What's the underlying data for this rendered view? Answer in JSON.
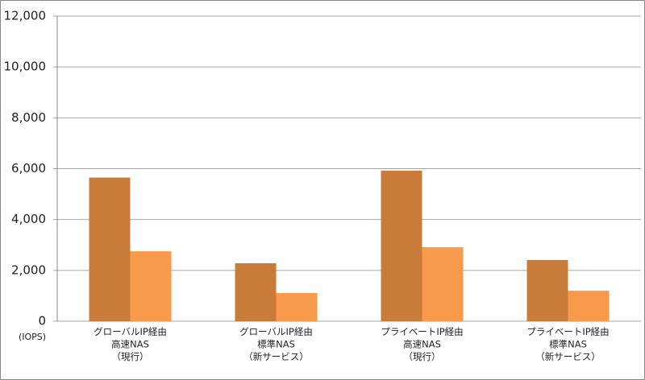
{
  "chart_data": {
    "type": "bar",
    "categories": [
      [
        "グローバルIP経由",
        "高速NAS",
        "（現行）"
      ],
      [
        "グローバルIP経由",
        "標準NAS",
        "（新サービス）"
      ],
      [
        "プライベートIP経由",
        "高速NAS",
        "（現行）"
      ],
      [
        "プライベートIP経由",
        "標準NAS",
        "（新サービス）"
      ]
    ],
    "series": [
      {
        "color": "#c97b3a",
        "values": [
          5650,
          2280,
          5920,
          2410
        ]
      },
      {
        "color": "#f79a4c",
        "values": [
          2750,
          1110,
          2910,
          1200
        ]
      }
    ],
    "y_unit_label": "(IOPS)",
    "ylim": [
      0,
      12000
    ],
    "yticks": [
      0,
      {
        "value": 2000,
        "label": "2,000"
      },
      {
        "value": 4000,
        "label": "4,000"
      },
      {
        "value": 6000,
        "label": "6,000"
      },
      {
        "value": 8000,
        "label": "8,000"
      },
      {
        "value": 10000,
        "label": "10,000"
      },
      {
        "value": 12000,
        "label": "12,000"
      }
    ],
    "grid": true
  }
}
